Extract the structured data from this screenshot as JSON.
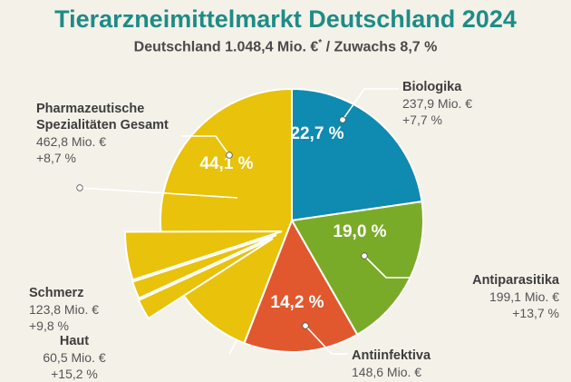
{
  "title": "Tierarzneimittelmarkt Deutschland 2024",
  "subtitle": {
    "main": "Deutschland 1.048,4 Mio. €",
    "mark": "*",
    "growth": "/ Zuwachs 8,7 %"
  },
  "chart_data": {
    "type": "pie",
    "title": "Tierarzneimittelmarkt Deutschland 2024",
    "total": 1048.4,
    "total_growth": 8.7,
    "unit": "Mio. €",
    "series": [
      {
        "name": "Biologika",
        "share": 22.7,
        "share_label": "22,7 %",
        "value": 237.9,
        "value_label": "237,9 Mio. €",
        "growth_label": "+7,7 %",
        "color": "#0f8ab0"
      },
      {
        "name": "Antiparasitika",
        "share": 19.0,
        "share_label": "19,0 %",
        "value": 199.1,
        "value_label": "199,1 Mio. €",
        "growth_label": "+13,7 %",
        "color": "#7aab28"
      },
      {
        "name": "Antiinfektiva",
        "share": 14.2,
        "share_label": "14,2 %",
        "value": 148.6,
        "value_label": "148,6 Mio. €",
        "growth_label": "",
        "color": "#e1582e"
      },
      {
        "name": "Pharmazeutische Spezialitäten Gesamt",
        "name_lines": [
          "Pharmazeutische",
          "Spezialitäten Gesamt"
        ],
        "share": 44.1,
        "share_label": "44,1 %",
        "value": 462.8,
        "value_label": "462,8 Mio. €",
        "growth_label": "+8,7 %",
        "color": "#e8c20b"
      }
    ],
    "breakout": [
      {
        "name": "Schmerz",
        "value": 123.8,
        "value_label": "123,8 Mio. €",
        "growth_label": "+9,8 %"
      },
      {
        "name": "Haut",
        "value": 60.5,
        "value_label": "60,5 Mio. €",
        "growth_label": "+15,2 %"
      }
    ]
  }
}
